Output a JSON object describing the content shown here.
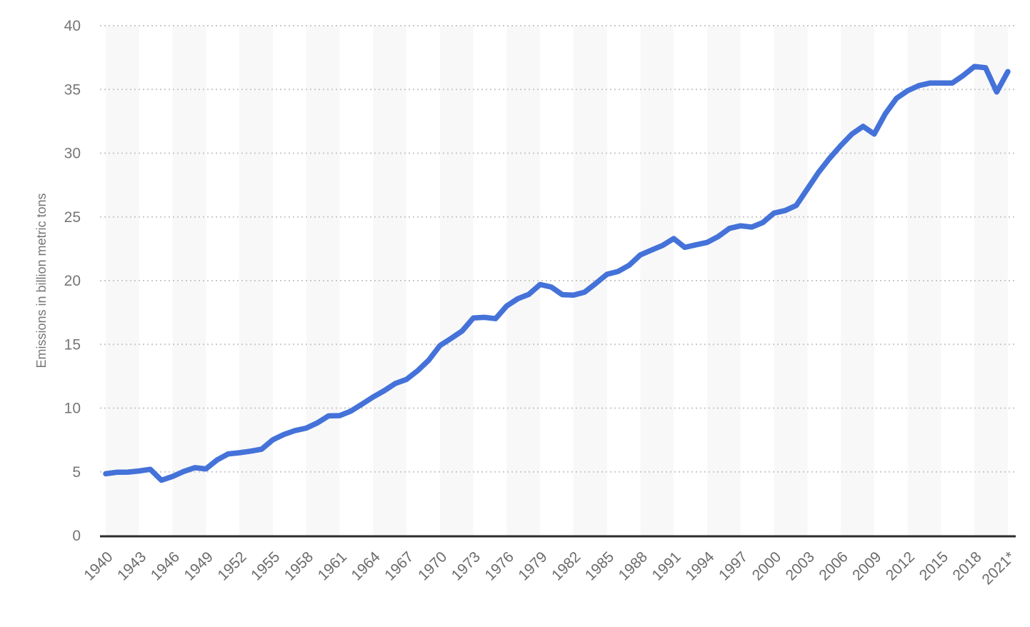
{
  "chart_data": {
    "type": "line",
    "title": "",
    "subtitle": "",
    "xlabel": "",
    "ylabel": "Emissions in billion metric tons",
    "ylim": [
      0,
      40
    ],
    "y_ticks": [
      0,
      5,
      10,
      15,
      20,
      25,
      30,
      35,
      40
    ],
    "x_tick_labels": [
      "1940",
      "1943",
      "1946",
      "1949",
      "1952",
      "1955",
      "1958",
      "1961",
      "1964",
      "1967",
      "1970",
      "1973",
      "1976",
      "1979",
      "1982",
      "1985",
      "1988",
      "1991",
      "1994",
      "1997",
      "2000",
      "2003",
      "2006",
      "2009",
      "2012",
      "2015",
      "2018",
      "2021*"
    ],
    "grid": "horizontal dotted gridlines every 5 units, vertical alternating 3-year background stripes",
    "legend_position": "none",
    "start_year": 1940,
    "end_year": 2021,
    "series": [
      {
        "name": "emissions",
        "values": [
          4.85,
          4.97,
          4.98,
          5.07,
          5.2,
          4.34,
          4.64,
          5.03,
          5.33,
          5.23,
          5.93,
          6.41,
          6.5,
          6.62,
          6.78,
          7.51,
          7.93,
          8.24,
          8.43,
          8.84,
          9.39,
          9.41,
          9.76,
          10.3,
          10.87,
          11.36,
          11.93,
          12.25,
          12.93,
          13.76,
          14.9,
          15.46,
          16.05,
          17.07,
          17.12,
          17.02,
          18.01,
          18.58,
          18.93,
          19.7,
          19.5,
          18.9,
          18.87,
          19.1,
          19.78,
          20.5,
          20.72,
          21.21,
          22.02,
          22.4,
          22.76,
          23.3,
          22.61,
          22.81,
          23.0,
          23.46,
          24.1,
          24.3,
          24.2,
          24.56,
          25.3,
          25.5,
          25.9,
          27.2,
          28.5,
          29.6,
          30.6,
          31.5,
          32.1,
          31.5,
          33.1,
          34.3,
          34.9,
          35.3,
          35.5,
          35.5,
          35.5,
          36.1,
          36.8,
          36.7,
          34.8,
          36.4
        ]
      }
    ],
    "colors": {
      "line": "#4472d9",
      "gridline": "#c9c9c9",
      "stripe": "#f8f8f8",
      "axis": "#2b2b2b",
      "y_tick_label": "#767676",
      "x_tick_label": "#6b6b6b",
      "axis_title": "#757575",
      "background": "#ffffff"
    }
  }
}
